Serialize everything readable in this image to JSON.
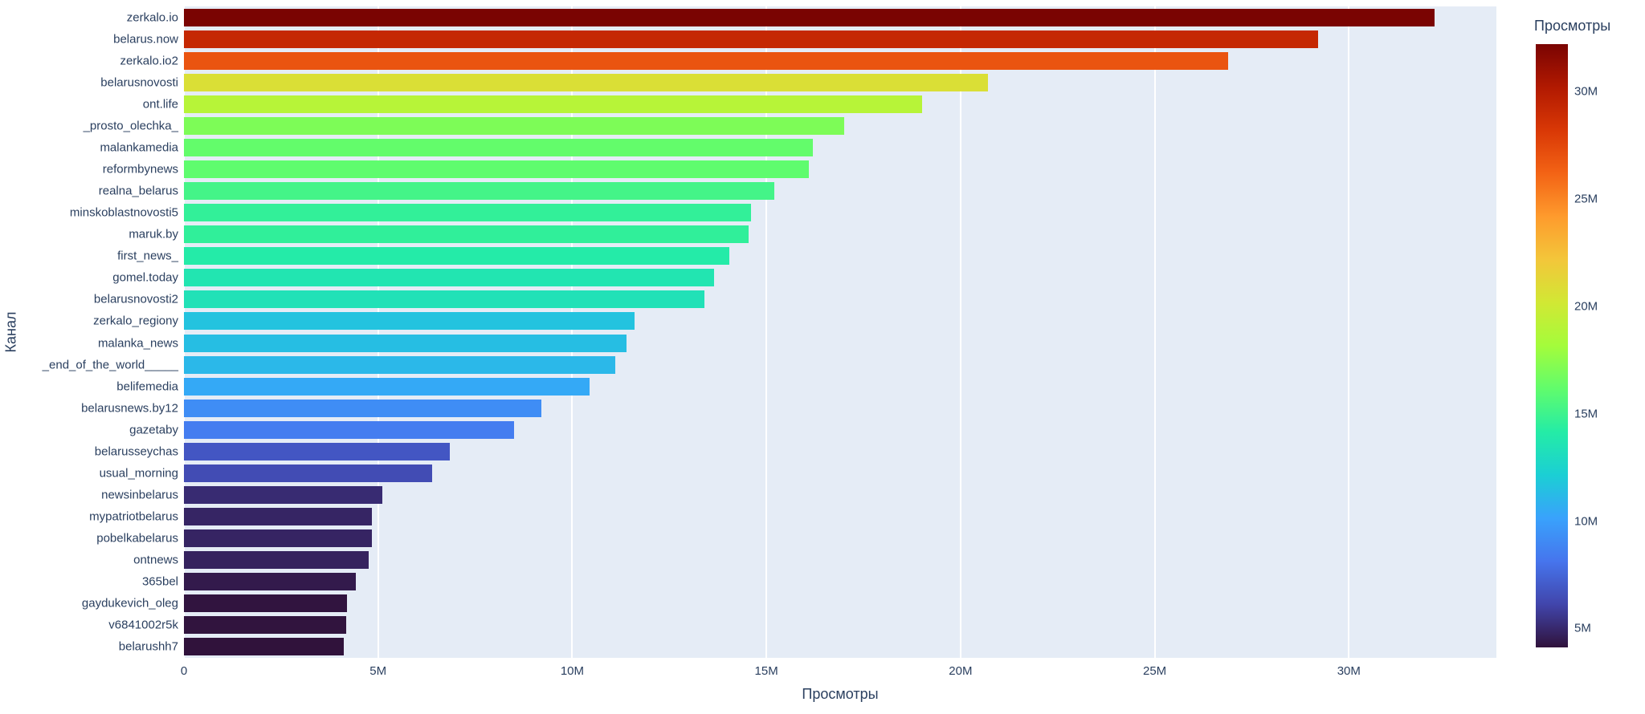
{
  "chart_data": {
    "type": "bar",
    "orientation": "horizontal",
    "xlabel": "Просмотры",
    "ylabel": "Канал",
    "categories": [
      "zerkalo.io",
      "belarus.now",
      "zerkalo.io2",
      "belarusnovosti",
      "ont.life",
      "_prosto_olechka_",
      "malankamedia",
      "reformbynews",
      "realna_belarus",
      "minskoblastnovosti5",
      "maruk.by",
      "first_news_",
      "gomel.today",
      "belarusnovosti2",
      "zerkalo_regiony",
      "malanka_news",
      "_end_of_the_world_____",
      "belifemedia",
      "belarusnews.by12",
      "gazetaby",
      "belarusseychas",
      "usual_morning",
      "newsinbelarus",
      "mypatriotbelarus",
      "pobelkabelarus",
      "ontnews",
      "365bel",
      "gaydukevich_oleg",
      "v6841002r5k",
      "belarushh7"
    ],
    "values_millions": [
      32.2,
      29.2,
      26.9,
      20.7,
      19.0,
      17.0,
      16.2,
      16.1,
      15.2,
      14.6,
      14.55,
      14.05,
      13.65,
      13.4,
      11.6,
      11.4,
      11.1,
      10.45,
      9.2,
      8.5,
      6.85,
      6.4,
      5.1,
      4.85,
      4.84,
      4.75,
      4.43,
      4.2,
      4.18,
      4.12
    ],
    "xlim": [
      0,
      33.8
    ],
    "xticks": [
      {
        "value": 0,
        "label": "0"
      },
      {
        "value": 5,
        "label": "5M"
      },
      {
        "value": 10,
        "label": "10M"
      },
      {
        "value": 15,
        "label": "15M"
      },
      {
        "value": 20,
        "label": "20M"
      },
      {
        "value": 25,
        "label": "25M"
      },
      {
        "value": 30,
        "label": "30M"
      }
    ],
    "colorbar": {
      "title": "Просмотры",
      "cmin": 4.12,
      "cmax": 32.2,
      "ticks": [
        {
          "value": 30,
          "label": "30M"
        },
        {
          "value": 25,
          "label": "25M"
        },
        {
          "value": 20,
          "label": "20M"
        },
        {
          "value": 15,
          "label": "15M"
        },
        {
          "value": 10,
          "label": "10M"
        },
        {
          "value": 5,
          "label": "5M"
        }
      ]
    },
    "colorscale": [
      "#30123b",
      "#4145ab",
      "#4675ed",
      "#39a2fc",
      "#1bcfd4",
      "#24eca6",
      "#61fc6c",
      "#a4fc3b",
      "#d1e834",
      "#f3c63a",
      "#fe9b2d",
      "#f36315",
      "#d93806",
      "#b11901",
      "#7a0402"
    ],
    "colors": {
      "plot_bg": "#e5ecf6",
      "grid": "#ffffff",
      "text": "#2a3f5f",
      "page_bg": "#ffffff"
    },
    "legend_position": "right-colorbar",
    "grid": true
  }
}
